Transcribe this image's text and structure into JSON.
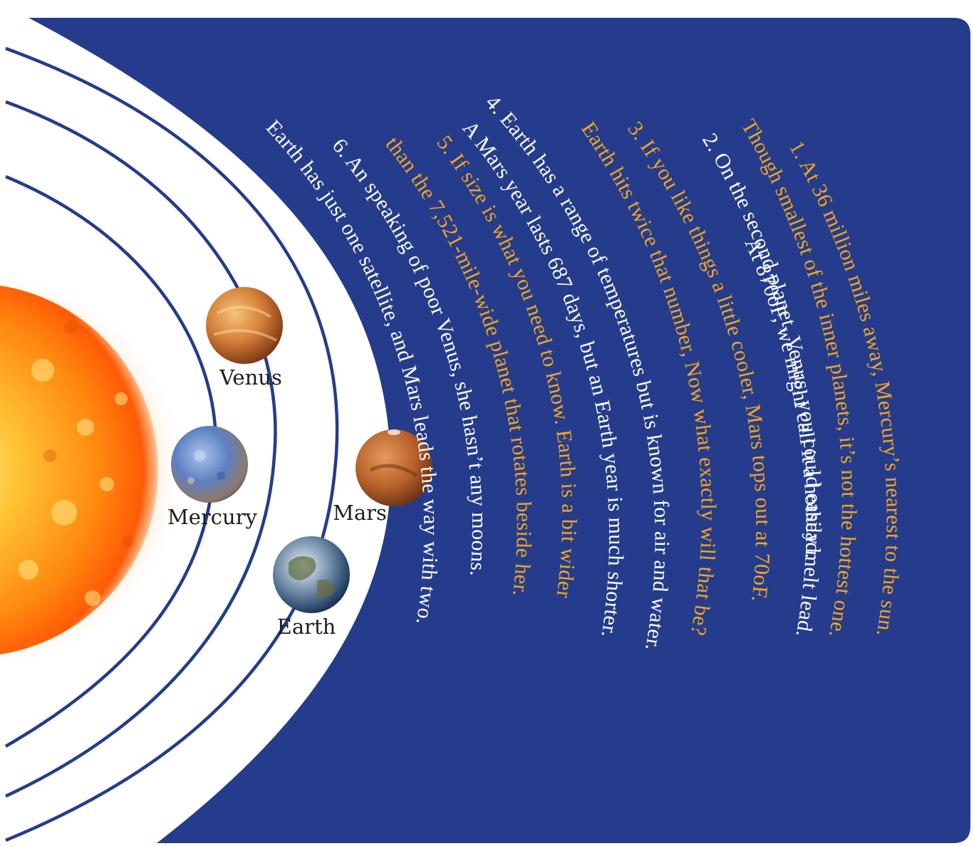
{
  "colors": {
    "panel": "#243c8b",
    "orbit": "#243c8b",
    "text_white": "#ffffff",
    "text_orange": "#f5a623"
  },
  "planets": {
    "venus": {
      "label": "Venus",
      "icon": "venus-planet-icon"
    },
    "mercury": {
      "label": "Mercury",
      "icon": "mercury-planet-icon"
    },
    "earth": {
      "label": "Earth",
      "icon": "earth-planet-icon"
    },
    "mars": {
      "label": "Mars",
      "icon": "mars-planet-icon"
    },
    "sun": {
      "icon": "sun-icon"
    }
  },
  "facts": [
    {
      "text": "1. At 36 million miles away, Mercury’s nearest to the sun.",
      "color": "orange"
    },
    {
      "text": "Though smallest of the inner planets, it’s not the hottest one.",
      "color": "orange"
    },
    {
      "text": "2. On the second planet, Venus, you could easily melt lead.",
      "color": "white"
    },
    {
      "text": "At 870oF, we might call it a hothead.",
      "color": "white"
    },
    {
      "text": "3. If you like things a little cooler, Mars tops out at 70oF.",
      "color": "orange"
    },
    {
      "text": "Earth hits twice that number, Now what exactly will that be?",
      "color": "orange"
    },
    {
      "text": "4. Earth has a range of temperatures but is known for air and water.",
      "color": "white"
    },
    {
      "text": "A Mars year lasts 687 days, but an Earth year is much shorter.",
      "color": "white"
    },
    {
      "text": "5. If size is what you need to know. Earth is a bit wider",
      "color": "orange"
    },
    {
      "text": "than the 7,521-mile-wide planet that rotates beside her.",
      "color": "orange"
    },
    {
      "text": "6. An speaking of poor Venus, she hasn’t any moons.",
      "color": "white"
    },
    {
      "text": "Earth has just one satellite, and Mars leads the way with two.",
      "color": "white"
    }
  ]
}
